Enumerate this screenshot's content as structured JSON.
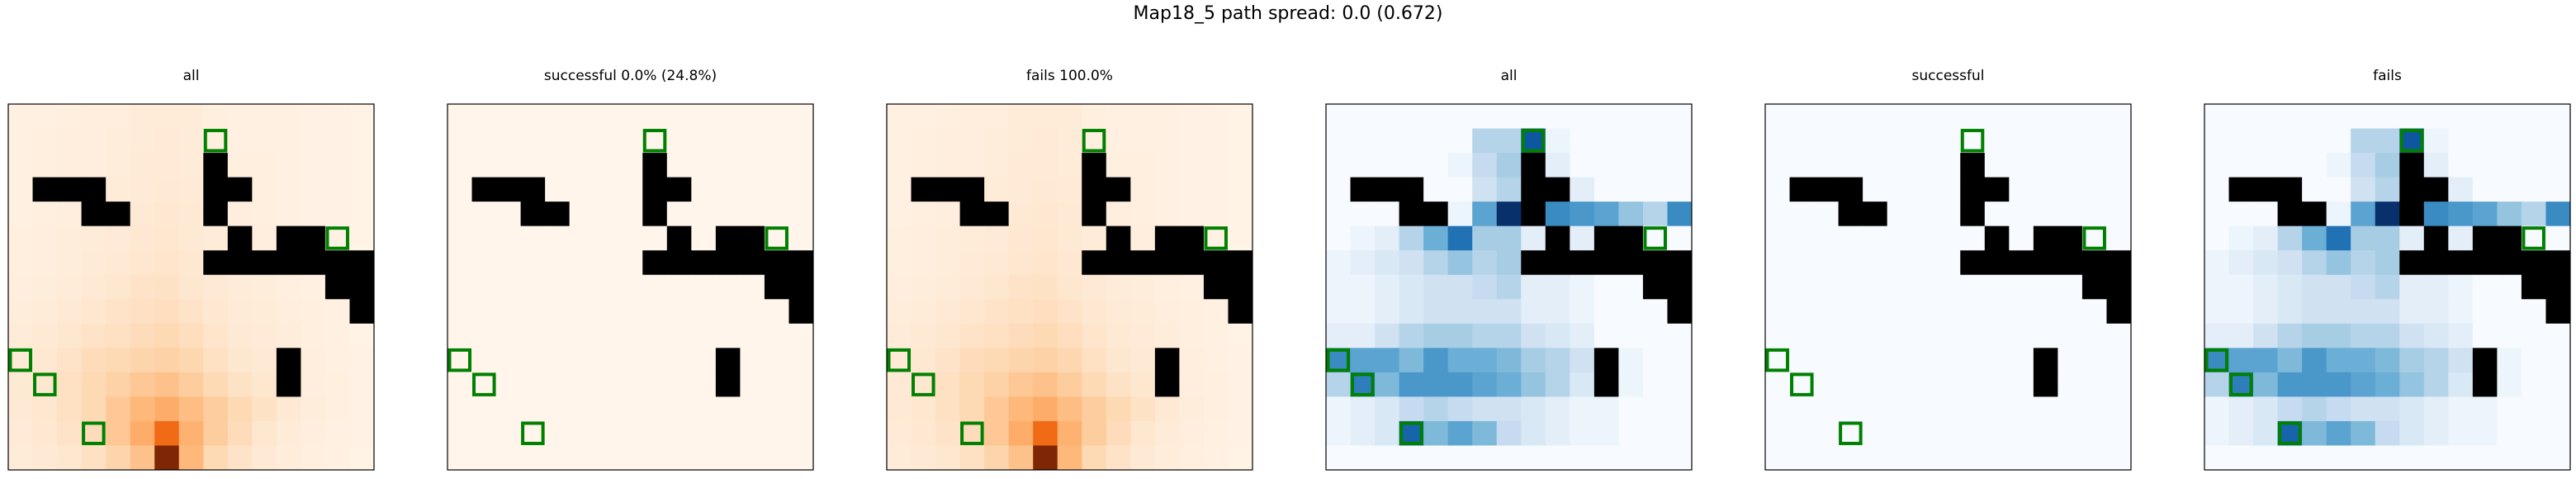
{
  "figure": {
    "suptitle": "Map18_5 path spread: 0.0 (0.672)"
  },
  "chart_data": {
    "type": "heatmap",
    "grid_size": 15,
    "colormaps": {
      "Oranges": [
        "#fff5eb",
        "#fee6ce",
        "#fdd0a2",
        "#fdae6b",
        "#fd8d3c",
        "#f16913",
        "#d94801",
        "#a63603",
        "#7f2704"
      ],
      "Blues": [
        "#f7fbff",
        "#deebf7",
        "#c6dbef",
        "#9ecae1",
        "#6baed6",
        "#4292c6",
        "#2171b5",
        "#08519c",
        "#08306b"
      ]
    },
    "wall_color": "#000000",
    "marker_color": "#008000",
    "walls": [
      [
        2,
        8
      ],
      [
        3,
        1
      ],
      [
        3,
        2
      ],
      [
        3,
        3
      ],
      [
        3,
        8
      ],
      [
        3,
        9
      ],
      [
        4,
        3
      ],
      [
        4,
        4
      ],
      [
        4,
        8
      ],
      [
        5,
        9
      ],
      [
        5,
        11
      ],
      [
        5,
        12
      ],
      [
        6,
        8
      ],
      [
        6,
        9
      ],
      [
        6,
        10
      ],
      [
        6,
        11
      ],
      [
        6,
        12
      ],
      [
        6,
        13
      ],
      [
        6,
        14
      ],
      [
        7,
        13
      ],
      [
        7,
        14
      ],
      [
        8,
        14
      ],
      [
        10,
        11
      ],
      [
        11,
        11
      ]
    ],
    "markers": [
      [
        1,
        8
      ],
      [
        5,
        13
      ],
      [
        10,
        0
      ],
      [
        11,
        1
      ],
      [
        13,
        3
      ]
    ],
    "panels": [
      {
        "title": "all",
        "cmap": "Oranges",
        "values": [
          [
            0.04,
            0.04,
            0.05,
            0.06,
            0.06,
            0.08,
            0.08,
            0.08,
            0.05,
            0.04,
            0.04,
            0.04,
            0.03,
            0.03,
            0.02
          ],
          [
            0.04,
            0.05,
            0.06,
            0.06,
            0.07,
            0.08,
            0.09,
            0.08,
            0.05,
            0.04,
            0.04,
            0.04,
            0.03,
            0.03,
            0.02
          ],
          [
            0.04,
            0.05,
            0.06,
            0.06,
            0.07,
            0.09,
            0.09,
            0.08,
            0.06,
            0.05,
            0.05,
            0.04,
            0.03,
            0.03,
            0.02
          ],
          [
            0.04,
            0.05,
            0.06,
            0.07,
            0.08,
            0.09,
            0.1,
            0.09,
            0.06,
            0.05,
            0.05,
            0.04,
            0.03,
            0.03,
            0.02
          ],
          [
            0.04,
            0.05,
            0.06,
            0.07,
            0.08,
            0.1,
            0.11,
            0.1,
            0.07,
            0.06,
            0.05,
            0.04,
            0.03,
            0.03,
            0.02
          ],
          [
            0.05,
            0.06,
            0.07,
            0.08,
            0.09,
            0.11,
            0.12,
            0.1,
            0.08,
            0.06,
            0.06,
            0.05,
            0.04,
            0.03,
            0.02
          ],
          [
            0.05,
            0.06,
            0.07,
            0.09,
            0.1,
            0.12,
            0.13,
            0.11,
            0.08,
            0.07,
            0.06,
            0.05,
            0.04,
            0.03,
            0.02
          ],
          [
            0.06,
            0.07,
            0.08,
            0.1,
            0.12,
            0.14,
            0.15,
            0.12,
            0.1,
            0.08,
            0.07,
            0.05,
            0.04,
            0.03,
            0.02
          ],
          [
            0.07,
            0.08,
            0.1,
            0.12,
            0.14,
            0.16,
            0.17,
            0.14,
            0.11,
            0.09,
            0.08,
            0.06,
            0.05,
            0.04,
            0.02
          ],
          [
            0.08,
            0.1,
            0.12,
            0.14,
            0.16,
            0.18,
            0.2,
            0.17,
            0.13,
            0.1,
            0.09,
            0.07,
            0.05,
            0.04,
            0.02
          ],
          [
            0.09,
            0.11,
            0.14,
            0.18,
            0.2,
            0.22,
            0.24,
            0.21,
            0.16,
            0.12,
            0.1,
            0.08,
            0.06,
            0.04,
            0.03
          ],
          [
            0.1,
            0.12,
            0.16,
            0.2,
            0.24,
            0.28,
            0.3,
            0.26,
            0.2,
            0.15,
            0.12,
            0.09,
            0.06,
            0.05,
            0.03
          ],
          [
            0.1,
            0.12,
            0.16,
            0.2,
            0.28,
            0.34,
            0.38,
            0.32,
            0.26,
            0.2,
            0.15,
            0.1,
            0.07,
            0.05,
            0.03
          ],
          [
            0.09,
            0.11,
            0.14,
            0.18,
            0.28,
            0.38,
            0.62,
            0.36,
            0.26,
            0.18,
            0.12,
            0.08,
            0.06,
            0.04,
            0.03
          ],
          [
            0.08,
            0.1,
            0.12,
            0.16,
            0.22,
            0.3,
            1.0,
            0.34,
            0.2,
            0.14,
            0.1,
            0.07,
            0.05,
            0.04,
            0.02
          ]
        ]
      },
      {
        "title": "successful 0.0% (24.8%)",
        "cmap": "Oranges",
        "values": "zeros"
      },
      {
        "title": "fails 100.0%",
        "cmap": "Oranges",
        "values": "same_as_0"
      },
      {
        "title": "all",
        "cmap": "Blues",
        "values": [
          [
            0.0,
            0.0,
            0.0,
            0.0,
            0.0,
            0.0,
            0.0,
            0.0,
            0.0,
            0.0,
            0.0,
            0.0,
            0.0,
            0.0,
            0.0
          ],
          [
            0.0,
            0.0,
            0.0,
            0.0,
            0.0,
            0.0,
            0.3,
            0.3,
            0.85,
            0.05,
            0.0,
            0.0,
            0.0,
            0.0,
            0.0
          ],
          [
            0.0,
            0.0,
            0.0,
            0.0,
            0.0,
            0.05,
            0.25,
            0.35,
            0.0,
            0.1,
            0.0,
            0.0,
            0.0,
            0.0,
            0.0
          ],
          [
            0.0,
            0.0,
            0.0,
            0.0,
            0.0,
            0.0,
            0.2,
            0.3,
            0.0,
            0.0,
            0.1,
            0.0,
            0.0,
            0.0,
            0.0
          ],
          [
            0.0,
            0.0,
            0.0,
            0.0,
            0.0,
            0.05,
            0.55,
            1.0,
            0.0,
            0.65,
            0.6,
            0.55,
            0.4,
            0.3,
            0.65
          ],
          [
            0.0,
            0.05,
            0.1,
            0.3,
            0.5,
            0.75,
            0.35,
            0.35,
            0.1,
            0.0,
            0.1,
            0.0,
            0.0,
            0.0,
            0.0
          ],
          [
            0.05,
            0.1,
            0.15,
            0.2,
            0.3,
            0.4,
            0.3,
            0.35,
            0.0,
            0.0,
            0.0,
            0.0,
            0.0,
            0.0,
            0.0
          ],
          [
            0.05,
            0.05,
            0.1,
            0.15,
            0.2,
            0.2,
            0.25,
            0.3,
            0.1,
            0.1,
            0.05,
            0.0,
            0.0,
            0.0,
            0.0
          ],
          [
            0.05,
            0.05,
            0.1,
            0.15,
            0.2,
            0.2,
            0.2,
            0.2,
            0.1,
            0.1,
            0.05,
            0.0,
            0.0,
            0.0,
            0.0
          ],
          [
            0.1,
            0.1,
            0.2,
            0.3,
            0.35,
            0.35,
            0.3,
            0.3,
            0.2,
            0.15,
            0.1,
            0.0,
            0.0,
            0.0,
            0.0
          ],
          [
            0.65,
            0.55,
            0.55,
            0.45,
            0.6,
            0.5,
            0.5,
            0.45,
            0.35,
            0.3,
            0.2,
            0.0,
            0.05,
            0.0,
            0.0
          ],
          [
            0.3,
            0.7,
            0.45,
            0.6,
            0.6,
            0.6,
            0.55,
            0.5,
            0.4,
            0.3,
            0.15,
            0.0,
            0.05,
            0.0,
            0.0
          ],
          [
            0.05,
            0.1,
            0.15,
            0.25,
            0.3,
            0.25,
            0.2,
            0.2,
            0.15,
            0.1,
            0.05,
            0.05,
            0.0,
            0.0,
            0.0
          ],
          [
            0.05,
            0.1,
            0.15,
            0.8,
            0.45,
            0.55,
            0.45,
            0.25,
            0.15,
            0.1,
            0.05,
            0.05,
            0.0,
            0.0,
            0.0
          ],
          [
            0.0,
            0.0,
            0.0,
            0.0,
            0.0,
            0.0,
            0.0,
            0.0,
            0.0,
            0.0,
            0.0,
            0.0,
            0.0,
            0.0,
            0.0
          ]
        ]
      },
      {
        "title": "successful",
        "cmap": "Blues",
        "values": "zeros"
      },
      {
        "title": "fails",
        "cmap": "Blues",
        "values": "same_as_3"
      }
    ]
  }
}
